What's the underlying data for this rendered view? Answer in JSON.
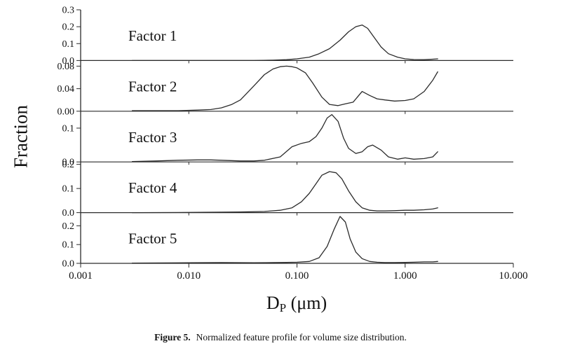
{
  "figure": {
    "ylabel": "Fraction",
    "xlabel_main": "D",
    "xlabel_sub": "P",
    "xlabel_unit": " (μm)",
    "caption_prefix": "Figure 5.",
    "caption_text": "Normalized feature profile for volume size distribution."
  },
  "chart_data": {
    "type": "line",
    "title": "Normalized feature profile for volume size distribution",
    "xlabel": "D_P (μm)",
    "ylabel": "Fraction",
    "x_scale": "log",
    "x_min": 0.001,
    "x_max": 10,
    "grid": false,
    "legend": "none",
    "line_color": "#2b2b2b",
    "x_ticks": [
      {
        "value": 0.001,
        "label": "0.001"
      },
      {
        "value": 0.01,
        "label": "0.010"
      },
      {
        "value": 0.1,
        "label": "0.100"
      },
      {
        "value": 1.0,
        "label": "1.000"
      },
      {
        "value": 10.0,
        "label": "10.000"
      }
    ],
    "panels": [
      {
        "label": "Factor 1",
        "ymax": 0.3,
        "yticks": [
          {
            "value": 0.0,
            "label": "0.0"
          },
          {
            "value": 0.1,
            "label": "0.1"
          },
          {
            "value": 0.2,
            "label": "0.2"
          },
          {
            "value": 0.3,
            "label": "0.3"
          }
        ],
        "x": [
          0.003,
          0.01,
          0.02,
          0.04,
          0.06,
          0.08,
          0.1,
          0.13,
          0.16,
          0.2,
          0.25,
          0.3,
          0.35,
          0.4,
          0.45,
          0.5,
          0.6,
          0.7,
          0.85,
          1.0,
          1.2,
          1.5,
          1.8,
          2.0
        ],
        "y": [
          0,
          0,
          0,
          0,
          0.002,
          0.005,
          0.01,
          0.02,
          0.04,
          0.07,
          0.12,
          0.17,
          0.2,
          0.21,
          0.19,
          0.15,
          0.08,
          0.04,
          0.02,
          0.01,
          0.006,
          0.005,
          0.008,
          0.01
        ]
      },
      {
        "label": "Factor 2",
        "ymax": 0.09,
        "yticks": [
          {
            "value": 0.0,
            "label": "0.00"
          },
          {
            "value": 0.04,
            "label": "0.04"
          },
          {
            "value": 0.08,
            "label": "0.08"
          }
        ],
        "x": [
          0.003,
          0.005,
          0.008,
          0.012,
          0.016,
          0.02,
          0.025,
          0.03,
          0.04,
          0.05,
          0.06,
          0.07,
          0.08,
          0.09,
          0.1,
          0.12,
          0.14,
          0.17,
          0.2,
          0.24,
          0.28,
          0.33,
          0.4,
          0.47,
          0.55,
          0.65,
          0.8,
          1.0,
          1.2,
          1.5,
          1.8,
          2.0
        ],
        "y": [
          0.001,
          0.001,
          0.001,
          0.002,
          0.003,
          0.006,
          0.012,
          0.02,
          0.045,
          0.065,
          0.075,
          0.079,
          0.08,
          0.079,
          0.077,
          0.068,
          0.05,
          0.025,
          0.012,
          0.01,
          0.013,
          0.016,
          0.035,
          0.028,
          0.022,
          0.02,
          0.018,
          0.019,
          0.022,
          0.035,
          0.055,
          0.07
        ]
      },
      {
        "label": "Factor 3",
        "ymax": 0.15,
        "yticks": [
          {
            "value": 0.0,
            "label": "0.0"
          },
          {
            "value": 0.1,
            "label": "0.1"
          }
        ],
        "x": [
          0.003,
          0.005,
          0.008,
          0.012,
          0.016,
          0.02,
          0.03,
          0.04,
          0.05,
          0.07,
          0.09,
          0.11,
          0.13,
          0.15,
          0.17,
          0.19,
          0.21,
          0.24,
          0.27,
          0.3,
          0.35,
          0.4,
          0.45,
          0.5,
          0.6,
          0.7,
          0.85,
          1.0,
          1.2,
          1.5,
          1.8,
          2.0
        ],
        "y": [
          0.001,
          0.003,
          0.005,
          0.006,
          0.006,
          0.005,
          0.003,
          0.003,
          0.005,
          0.015,
          0.045,
          0.055,
          0.06,
          0.075,
          0.1,
          0.13,
          0.14,
          0.12,
          0.07,
          0.04,
          0.025,
          0.03,
          0.045,
          0.05,
          0.035,
          0.015,
          0.008,
          0.012,
          0.008,
          0.01,
          0.015,
          0.03
        ]
      },
      {
        "label": "Factor 4",
        "ymax": 0.21,
        "yticks": [
          {
            "value": 0.0,
            "label": "0.0"
          },
          {
            "value": 0.1,
            "label": "0.1"
          },
          {
            "value": 0.2,
            "label": "0.2"
          }
        ],
        "x": [
          0.003,
          0.01,
          0.02,
          0.03,
          0.05,
          0.07,
          0.09,
          0.11,
          0.13,
          0.15,
          0.17,
          0.2,
          0.23,
          0.26,
          0.3,
          0.35,
          0.4,
          0.47,
          0.55,
          0.65,
          0.8,
          1.0,
          1.2,
          1.5,
          1.8,
          2.0
        ],
        "y": [
          0,
          0.001,
          0.002,
          0.003,
          0.005,
          0.01,
          0.02,
          0.045,
          0.08,
          0.12,
          0.155,
          0.17,
          0.165,
          0.14,
          0.09,
          0.045,
          0.02,
          0.01,
          0.007,
          0.007,
          0.008,
          0.01,
          0.01,
          0.012,
          0.015,
          0.02
        ]
      },
      {
        "label": "Factor 5",
        "ymax": 0.27,
        "yticks": [
          {
            "value": 0.0,
            "label": "0.0"
          },
          {
            "value": 0.1,
            "label": "0.1"
          },
          {
            "value": 0.2,
            "label": "0.2"
          }
        ],
        "x": [
          0.003,
          0.01,
          0.02,
          0.04,
          0.06,
          0.08,
          0.1,
          0.13,
          0.16,
          0.19,
          0.22,
          0.25,
          0.28,
          0.31,
          0.35,
          0.4,
          0.47,
          0.55,
          0.65,
          0.8,
          1.0,
          1.2,
          1.5,
          1.8,
          2.0
        ],
        "y": [
          0.001,
          0.003,
          0.004,
          0.003,
          0.004,
          0.005,
          0.006,
          0.01,
          0.03,
          0.09,
          0.18,
          0.25,
          0.22,
          0.13,
          0.06,
          0.025,
          0.01,
          0.006,
          0.004,
          0.004,
          0.005,
          0.006,
          0.008,
          0.008,
          0.01
        ]
      }
    ]
  }
}
